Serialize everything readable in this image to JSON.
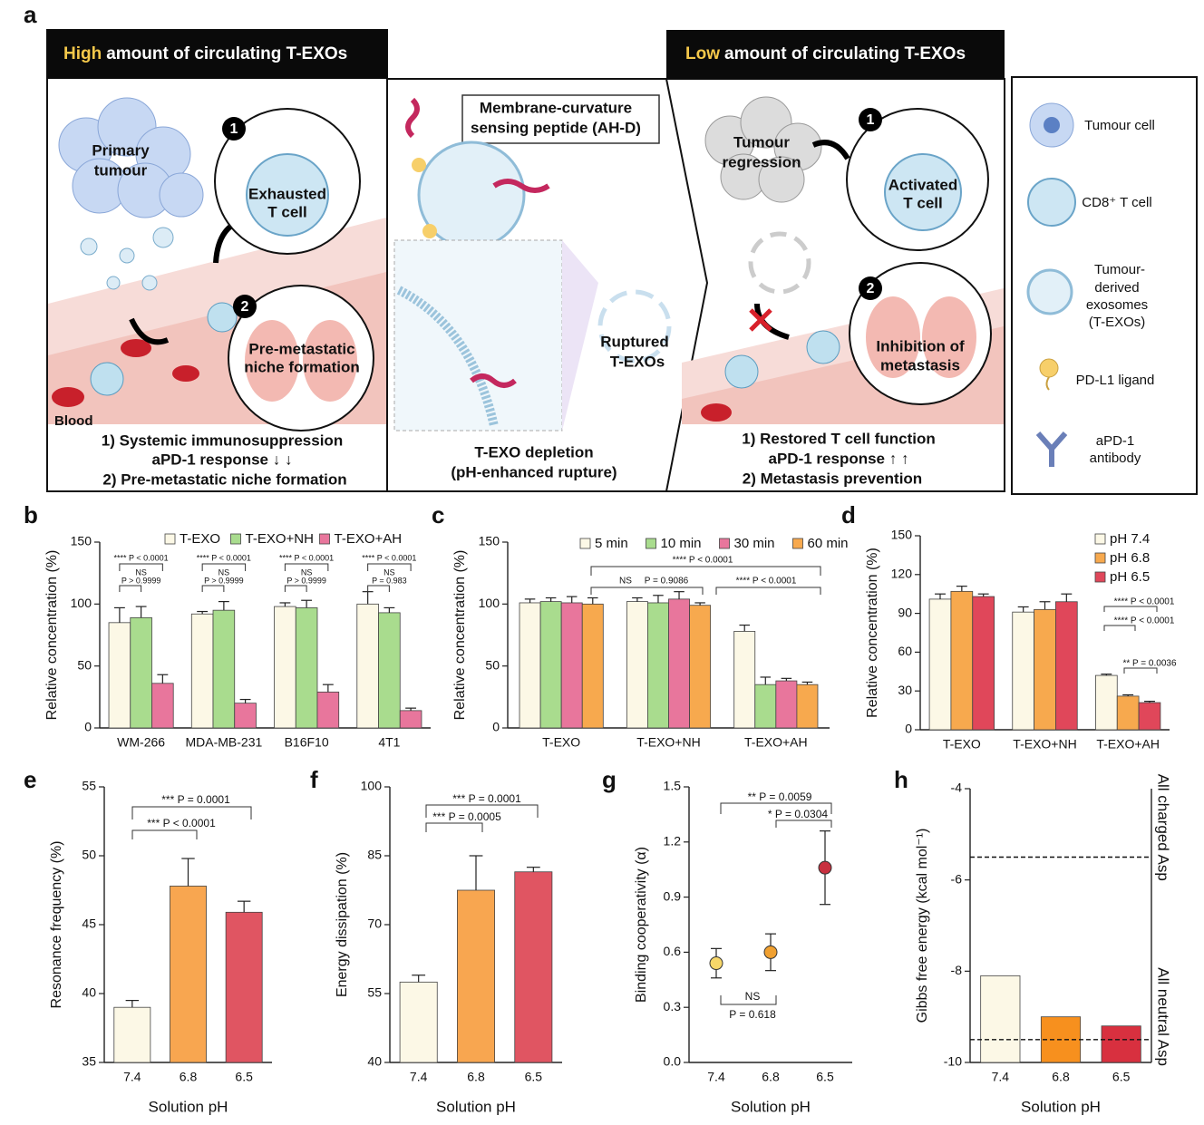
{
  "diagram": {
    "panel": "a",
    "left": {
      "header_highlight": "High",
      "header_rest": "amount of circulating T-EXOs",
      "primary": [
        "Primary",
        "tumour"
      ],
      "step1": "1",
      "step2": "2",
      "exhausted": [
        "Exhausted",
        "T cell"
      ],
      "niche": [
        "Pre-metastatic",
        "niche formation"
      ],
      "blood": "Blood",
      "notes": [
        "1) Systemic immunosuppression",
        "aPD-1 response ↓ ↓",
        "2) Pre-metastatic niche formation"
      ]
    },
    "middle": {
      "peptide": [
        "Membrane-curvature",
        "sensing peptide (AH-D)"
      ],
      "ruptured": [
        "Ruptured",
        "T-EXOs"
      ],
      "notes": [
        "T-EXO depletion",
        "(pH-enhanced rupture)"
      ]
    },
    "right": {
      "header_highlight": "Low",
      "header_rest": "amount of circulating T-EXOs",
      "regression": [
        "Tumour",
        "regression"
      ],
      "step1": "1",
      "step2": "2",
      "activated": [
        "Activated",
        "T cell"
      ],
      "inhibition": [
        "Inhibition of",
        "metastasis"
      ],
      "notes": [
        "1) Restored T cell function",
        "aPD-1 response ↑ ↑",
        "2) Metastasis prevention"
      ]
    },
    "legend": {
      "tumour": "Tumour cell",
      "tcell": "CD8⁺ T cell",
      "exo": [
        "Tumour-",
        "derived",
        "exosomes",
        "(T-EXOs)"
      ],
      "pdl1": "PD-L1 ligand",
      "apd1": [
        "aPD-1",
        "antibody"
      ]
    }
  },
  "chart_data": [
    {
      "type": "bar",
      "panel": "b",
      "ylabel": "Relative concentration (%)",
      "categories": [
        "WM-266",
        "MDA-MB-231",
        "B16F10",
        "4T1"
      ],
      "series": [
        {
          "name": "T-EXO",
          "color": "#fcf8e6",
          "values": [
            85,
            92,
            98,
            100
          ],
          "errors": [
            12,
            2,
            3,
            10
          ]
        },
        {
          "name": "T-EXO+NH",
          "color": "#a9dc8e",
          "values": [
            89,
            95,
            97,
            93
          ],
          "errors": [
            9,
            7,
            6,
            4
          ]
        },
        {
          "name": "T-EXO+AH",
          "color": "#e8769c",
          "values": [
            36,
            20,
            29,
            14
          ],
          "errors": [
            7,
            3,
            6,
            2
          ]
        }
      ],
      "ylim": [
        0,
        150
      ],
      "yticks": [
        0,
        50,
        100,
        150
      ],
      "significance": [
        [
          "**** P < 0.0001",
          "NS",
          "P > 0.9999"
        ],
        [
          "**** P < 0.0001",
          "NS",
          "P > 0.9999"
        ],
        [
          "**** P < 0.0001",
          "NS",
          "P > 0.9999"
        ],
        [
          "**** P < 0.0001",
          "NS",
          "P = 0.983"
        ]
      ]
    },
    {
      "type": "bar",
      "panel": "c",
      "ylabel": "Relative concentration (%)",
      "categories": [
        "T-EXO",
        "T-EXO+NH",
        "T-EXO+AH"
      ],
      "series": [
        {
          "name": "5 min",
          "color": "#fcf8e6",
          "values": [
            101,
            102,
            78
          ],
          "errors": [
            3,
            3,
            5
          ]
        },
        {
          "name": "10 min",
          "color": "#a9dc8e",
          "values": [
            102,
            101,
            35
          ],
          "errors": [
            3,
            6,
            6
          ]
        },
        {
          "name": "30 min",
          "color": "#e8769c",
          "values": [
            101,
            104,
            38
          ],
          "errors": [
            5,
            6,
            2
          ]
        },
        {
          "name": "60 min",
          "color": "#f7a94e",
          "values": [
            100,
            99,
            35
          ],
          "errors": [
            5,
            2,
            2
          ]
        }
      ],
      "ylim": [
        0,
        150
      ],
      "yticks": [
        0,
        50,
        100,
        150
      ],
      "annotations": [
        "**** P < 0.0001",
        "NS",
        "P = 0.9086",
        "**** P < 0.0001"
      ]
    },
    {
      "type": "bar",
      "panel": "d",
      "ylabel": "Relative concentration (%)",
      "categories": [
        "T-EXO",
        "T-EXO+NH",
        "T-EXO+AH"
      ],
      "series": [
        {
          "name": "pH 7.4",
          "color": "#fcf8e6",
          "values": [
            101,
            91,
            42
          ],
          "errors": [
            4,
            4,
            1
          ]
        },
        {
          "name": "pH 6.8",
          "color": "#f7a94e",
          "values": [
            107,
            93,
            26
          ],
          "errors": [
            4,
            6,
            1
          ]
        },
        {
          "name": "pH 6.5",
          "color": "#e0475a",
          "values": [
            103,
            99,
            21
          ],
          "errors": [
            2,
            6,
            1
          ]
        }
      ],
      "ylim": [
        0,
        150
      ],
      "yticks": [
        0,
        30,
        60,
        90,
        120,
        150
      ],
      "annotations": [
        "**** P < 0.0001",
        "**** P < 0.0001",
        "** P = 0.0036"
      ]
    },
    {
      "type": "bar",
      "panel": "e",
      "xlabel": "Solution pH",
      "ylabel": "Resonance frequency (%)",
      "categories": [
        "7.4",
        "6.8",
        "6.5"
      ],
      "values": [
        39,
        47.8,
        45.9
      ],
      "errors": [
        0.5,
        2,
        0.8
      ],
      "colors": [
        "#fcf8e6",
        "#f8a650",
        "#e05562"
      ],
      "ylim": [
        35,
        55
      ],
      "yticks": [
        35,
        40,
        45,
        50,
        55
      ],
      "annotations": [
        "*** P = 0.0001",
        "*** P < 0.0001"
      ]
    },
    {
      "type": "bar",
      "panel": "f",
      "xlabel": "Solution pH",
      "ylabel": "Energy dissipation (%)",
      "categories": [
        "7.4",
        "6.8",
        "6.5"
      ],
      "values": [
        57.5,
        77.5,
        81.5
      ],
      "errors": [
        1.5,
        7.5,
        1
      ],
      "colors": [
        "#fcf8e6",
        "#f8a650",
        "#e05562"
      ],
      "ylim": [
        40,
        100
      ],
      "yticks": [
        40,
        55,
        70,
        85,
        100
      ],
      "annotations": [
        "*** P = 0.0001",
        "*** P = 0.0005"
      ]
    },
    {
      "type": "dot",
      "panel": "g",
      "xlabel": "Solution pH",
      "ylabel": "Binding cooperativity (α)",
      "categories": [
        "7.4",
        "6.8",
        "6.5"
      ],
      "values": [
        0.54,
        0.6,
        1.06
      ],
      "errors": [
        0.08,
        0.1,
        0.2
      ],
      "colors": [
        "#f7d769",
        "#f0a030",
        "#c8303f"
      ],
      "ylim": [
        0,
        1.5
      ],
      "yticks": [
        {
          "value": 0,
          "label": "0.0"
        },
        0.3,
        0.6,
        0.9,
        1.2,
        1.5
      ],
      "annotations": [
        "** P = 0.0059",
        "* P = 0.0304",
        "NS",
        "P = 0.618"
      ]
    },
    {
      "type": "bar",
      "panel": "h",
      "xlabel": "Solution pH",
      "ylabel": "Gibbs free energy (kcal mol⁻¹)",
      "categories": [
        "7.4",
        "6.8",
        "6.5"
      ],
      "values": [
        -8.1,
        -9.0,
        -9.2
      ],
      "colors": [
        "#fcf8e6",
        "#f7901e",
        "#d8303f"
      ],
      "ylim": [
        -10,
        -4
      ],
      "yticks": [
        -4,
        -6,
        -8,
        -10
      ],
      "reference_lines": [
        {
          "value": -5.5,
          "label": "All charged Asp"
        },
        {
          "value": -9.5,
          "label": "All neutral Asp"
        }
      ]
    }
  ]
}
